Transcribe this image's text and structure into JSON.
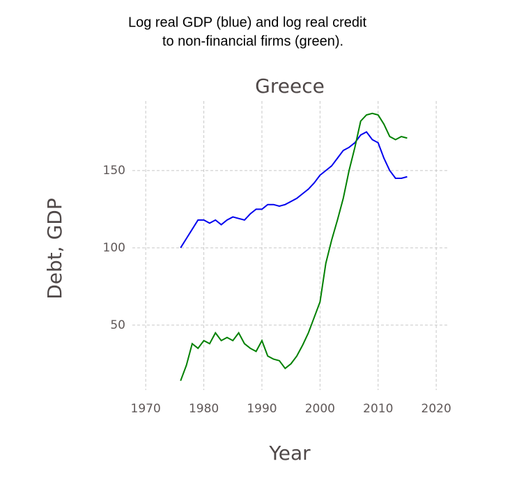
{
  "chart_data": {
    "type": "line",
    "caption": [
      "Log real GDP (blue) and log real credit",
      "to non-financial firms (green)."
    ],
    "title": "Greece",
    "x_label": "Year",
    "y_label": "Debt, GDP",
    "x": [
      1976,
      1977,
      1978,
      1979,
      1980,
      1981,
      1982,
      1983,
      1984,
      1985,
      1986,
      1987,
      1988,
      1989,
      1990,
      1991,
      1992,
      1993,
      1994,
      1995,
      1996,
      1997,
      1998,
      1999,
      2000,
      2001,
      2002,
      2003,
      2004,
      2005,
      2006,
      2007,
      2008,
      2009,
      2010,
      2011,
      2012,
      2013,
      2014,
      2015
    ],
    "series": [
      {
        "color": "#0000ee",
        "values": [
          100,
          106,
          112,
          118,
          118,
          116,
          118,
          115,
          118,
          120,
          119,
          118,
          122,
          125,
          125,
          128,
          128,
          127,
          128,
          130,
          132,
          135,
          138,
          142,
          147,
          150,
          153,
          158,
          163,
          165,
          168,
          173,
          175,
          170,
          168,
          158,
          150,
          145,
          145,
          146
        ]
      },
      {
        "color": "#008000",
        "values": [
          14,
          24,
          38,
          35,
          40,
          38,
          45,
          40,
          42,
          40,
          45,
          38,
          35,
          33,
          40,
          30,
          28,
          27,
          22,
          25,
          30,
          37,
          45,
          55,
          65,
          90,
          105,
          118,
          132,
          150,
          165,
          182,
          186,
          187,
          186,
          180,
          172,
          170,
          172,
          171
        ]
      }
    ],
    "xlim": [
      1967.7,
      2021.9
    ],
    "ylim": [
      8,
      195
    ],
    "xticks": [
      1970,
      1980,
      1990,
      2000,
      2010,
      2020
    ],
    "yticks": [
      50,
      100,
      150
    ],
    "grid": true
  }
}
